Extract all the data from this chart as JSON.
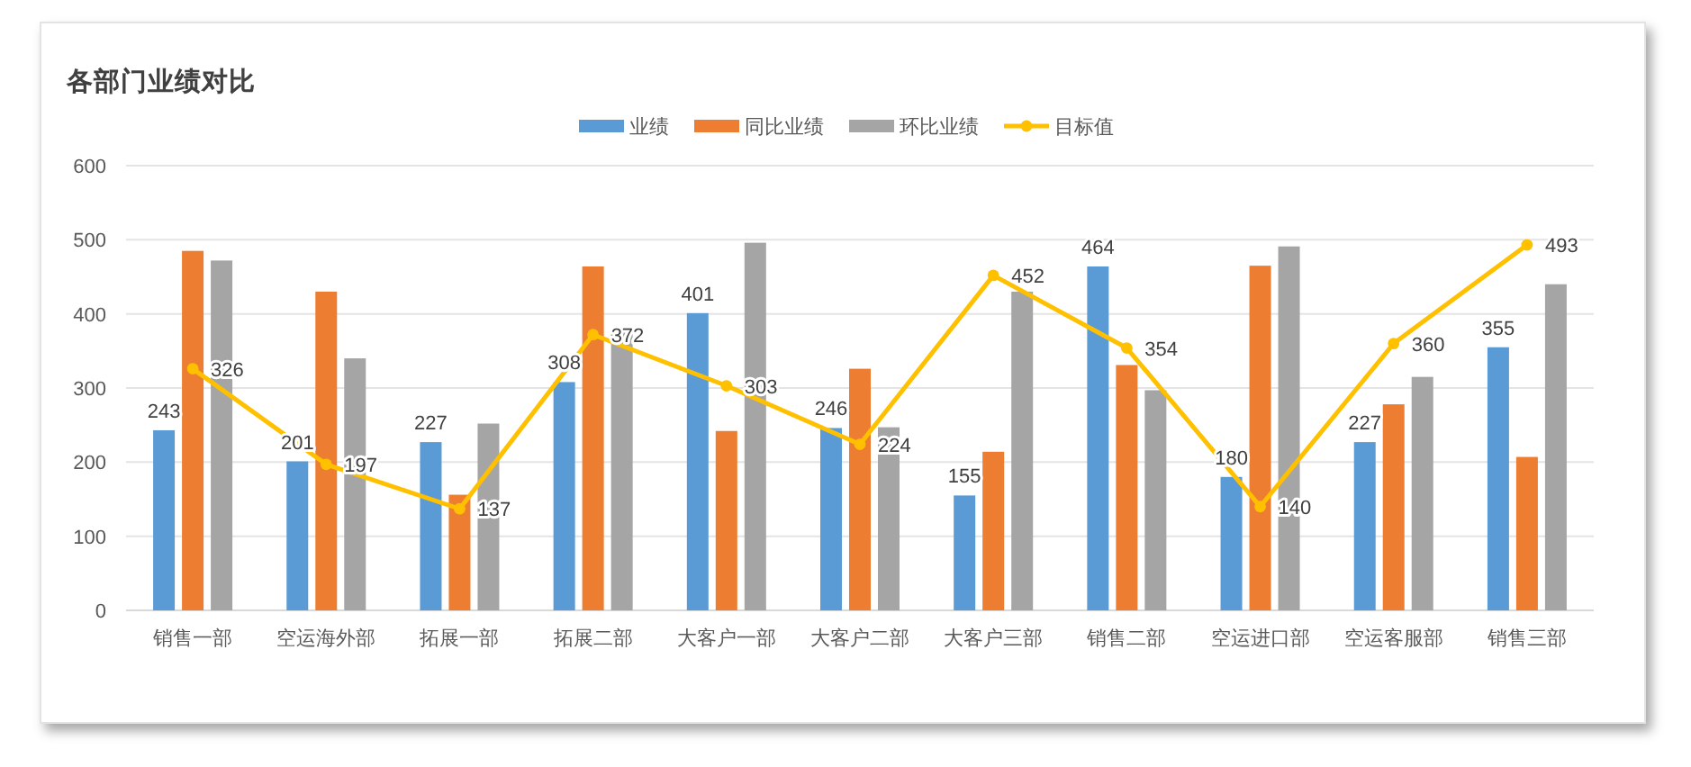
{
  "chart_data": {
    "type": "bar",
    "title": "各部门业绩对比",
    "categories": [
      "销售一部",
      "空运海外部",
      "拓展一部",
      "拓展二部",
      "大客户一部",
      "大客户二部",
      "大客户三部",
      "销售二部",
      "空运进口部",
      "空运客服部",
      "销售三部"
    ],
    "series": [
      {
        "name": "业绩",
        "color": "#5b9bd5",
        "values": [
          243,
          201,
          227,
          308,
          401,
          246,
          155,
          464,
          180,
          227,
          355
        ],
        "value_labels": [
          "243",
          "201",
          "227",
          "308",
          "401",
          "246",
          "155",
          "464",
          "180",
          "227",
          "355"
        ]
      },
      {
        "name": "同比业绩",
        "color": "#ed7d31",
        "values": [
          485,
          430,
          156,
          464,
          242,
          326,
          214,
          331,
          465,
          278,
          207
        ]
      },
      {
        "name": "环比业绩",
        "color": "#a5a5a5",
        "values": [
          472,
          340,
          252,
          376,
          496,
          247,
          430,
          297,
          491,
          315,
          440
        ]
      },
      {
        "name": "目标值",
        "type": "line",
        "color": "#ffc000",
        "marker": "circle",
        "values": [
          326,
          197,
          137,
          372,
          303,
          224,
          452,
          354,
          140,
          360,
          493
        ],
        "value_labels": [
          "326",
          "197",
          "137",
          "372",
          "303",
          "224",
          "452",
          "354",
          "140",
          "360",
          "493"
        ]
      }
    ],
    "ylim": [
      0,
      600
    ],
    "yticks": [
      0,
      100,
      200,
      300,
      400,
      500,
      600
    ],
    "grid": "y",
    "legend": "top"
  }
}
